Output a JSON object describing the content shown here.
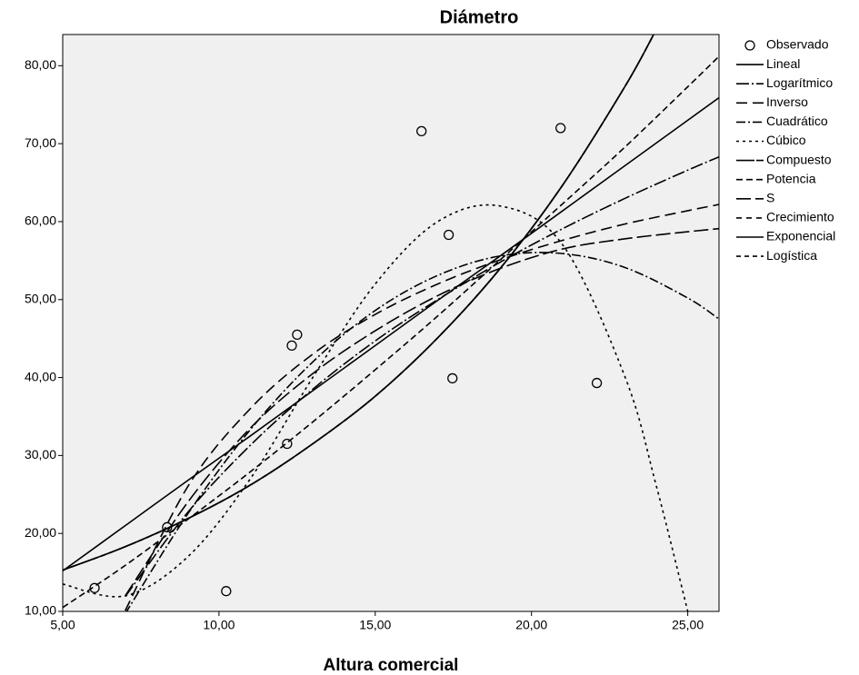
{
  "chart_data": {
    "type": "curve-fit",
    "title": "Diámetro",
    "x_label": "Altura comercial",
    "xlim": [
      5,
      26
    ],
    "ylim": [
      10,
      84
    ],
    "xticks": [
      {
        "value": 5,
        "label": "5,00"
      },
      {
        "value": 10,
        "label": "10,00"
      },
      {
        "value": 15,
        "label": "15,00"
      },
      {
        "value": 20,
        "label": "20,00"
      },
      {
        "value": 25,
        "label": "25,00"
      }
    ],
    "yticks": [
      {
        "value": 10,
        "label": "10,00"
      },
      {
        "value": 20,
        "label": "20,00"
      },
      {
        "value": 30,
        "label": "30,00"
      },
      {
        "value": 40,
        "label": "40,00"
      },
      {
        "value": 50,
        "label": "50,00"
      },
      {
        "value": 60,
        "label": "60,00"
      },
      {
        "value": 70,
        "label": "70,00"
      },
      {
        "value": 80,
        "label": "80,00"
      }
    ],
    "observed": {
      "name": "Observado",
      "color": "#000000",
      "x": [
        6.02,
        8.34,
        10.23,
        12.18,
        12.33,
        12.5,
        16.48,
        17.35,
        17.47,
        20.93,
        22.09
      ],
      "values": [
        13.0,
        20.8,
        12.6,
        31.5,
        44.1,
        45.5,
        71.6,
        58.3,
        39.9,
        72.0,
        39.3
      ]
    },
    "series": [
      {
        "name": "Lineal",
        "color": "#000000",
        "dash": "none",
        "x": [
          5,
          7,
          9,
          11,
          13,
          15,
          17,
          19,
          21,
          23,
          25,
          26
        ],
        "values": [
          15.2,
          21.0,
          26.8,
          32.5,
          38.3,
          44.1,
          49.9,
          55.6,
          61.4,
          67.2,
          73.0,
          75.9
        ]
      },
      {
        "name": "Logarítmico",
        "color": "#000000",
        "dash": "14 3 2 3",
        "x": [
          7,
          9,
          11,
          13,
          15,
          17,
          19,
          21,
          23,
          25,
          26
        ],
        "values": [
          11.9,
          22.7,
          31.3,
          38.5,
          44.7,
          50.0,
          54.8,
          59.1,
          63.0,
          66.6,
          68.3
        ]
      },
      {
        "name": "Inverso",
        "color": "#000000",
        "dash": "12 6",
        "x": [
          7,
          9,
          11,
          13,
          15,
          17,
          19,
          21,
          23,
          25,
          26
        ],
        "values": [
          10.1,
          26.0,
          36.0,
          43.0,
          48.1,
          52.0,
          55.1,
          57.6,
          59.7,
          61.4,
          62.2
        ]
      },
      {
        "name": "Cuadrático",
        "color": "#000000",
        "dash": "10 3 2 3",
        "x": [
          7,
          9,
          11,
          13,
          15,
          17,
          19,
          21,
          23,
          25,
          26
        ],
        "values": [
          9.7,
          22.5,
          33.3,
          42.0,
          48.6,
          53.1,
          55.6,
          55.9,
          54.1,
          50.2,
          47.5
        ]
      },
      {
        "name": "Cúbico",
        "color": "#000000",
        "dash": "3 4",
        "x": [
          5,
          7,
          9,
          11,
          13,
          15,
          17,
          19,
          21,
          23,
          24,
          25
        ],
        "values": [
          13.5,
          12.0,
          17.0,
          27.0,
          40.0,
          52.0,
          60.0,
          62.0,
          57.0,
          40.0,
          26.0,
          10.0
        ]
      },
      {
        "name": "Compuesto",
        "color": "#000000",
        "dash": "20 2",
        "x": [
          5,
          7,
          9,
          11,
          13,
          15,
          17,
          19,
          21,
          23,
          24
        ],
        "values": [
          15.3,
          18.3,
          21.9,
          26.2,
          31.5,
          37.6,
          45.1,
          54.0,
          64.7,
          77.4,
          84.7
        ]
      },
      {
        "name": "Potencia",
        "color": "#000000",
        "dash": "7 4",
        "x": [
          5,
          7,
          9,
          11,
          13,
          15,
          17,
          19,
          21,
          23,
          25,
          26
        ],
        "values": [
          10.5,
          15.9,
          21.8,
          27.9,
          34.3,
          41.0,
          47.9,
          55.1,
          62.3,
          69.6,
          77.3,
          81.2
        ]
      },
      {
        "name": "S",
        "color": "#000000",
        "dash": "16 5",
        "x": [
          7,
          9,
          11,
          13,
          15,
          17,
          19,
          21,
          23,
          25,
          26
        ],
        "values": [
          12.0,
          24.0,
          33.5,
          40.5,
          46.0,
          50.5,
          54.0,
          56.5,
          57.8,
          58.7,
          59.1
        ]
      },
      {
        "name": "Crecimiento",
        "color": "#000000",
        "dash": "6 5",
        "x": [
          5,
          7,
          9,
          11,
          13,
          15,
          17,
          19,
          21,
          23,
          24
        ],
        "values": [
          15.3,
          18.3,
          21.9,
          26.2,
          31.5,
          37.6,
          45.1,
          54.0,
          64.7,
          77.4,
          84.7
        ]
      },
      {
        "name": "Exponencial",
        "color": "#000000",
        "dash": "none",
        "x": [
          5,
          7,
          9,
          11,
          13,
          15,
          17,
          19,
          21,
          23,
          24
        ],
        "values": [
          15.3,
          18.3,
          21.9,
          26.2,
          31.5,
          37.6,
          45.1,
          54.0,
          64.7,
          77.4,
          84.7
        ]
      },
      {
        "name": "Logística",
        "color": "#000000",
        "dash": "5 4",
        "x": [
          5,
          7,
          9,
          11,
          13,
          15,
          17,
          19,
          21,
          23,
          24
        ],
        "values": [
          15.3,
          18.3,
          21.9,
          26.2,
          31.5,
          37.6,
          45.1,
          54.0,
          64.7,
          77.4,
          84.7
        ]
      }
    ]
  }
}
